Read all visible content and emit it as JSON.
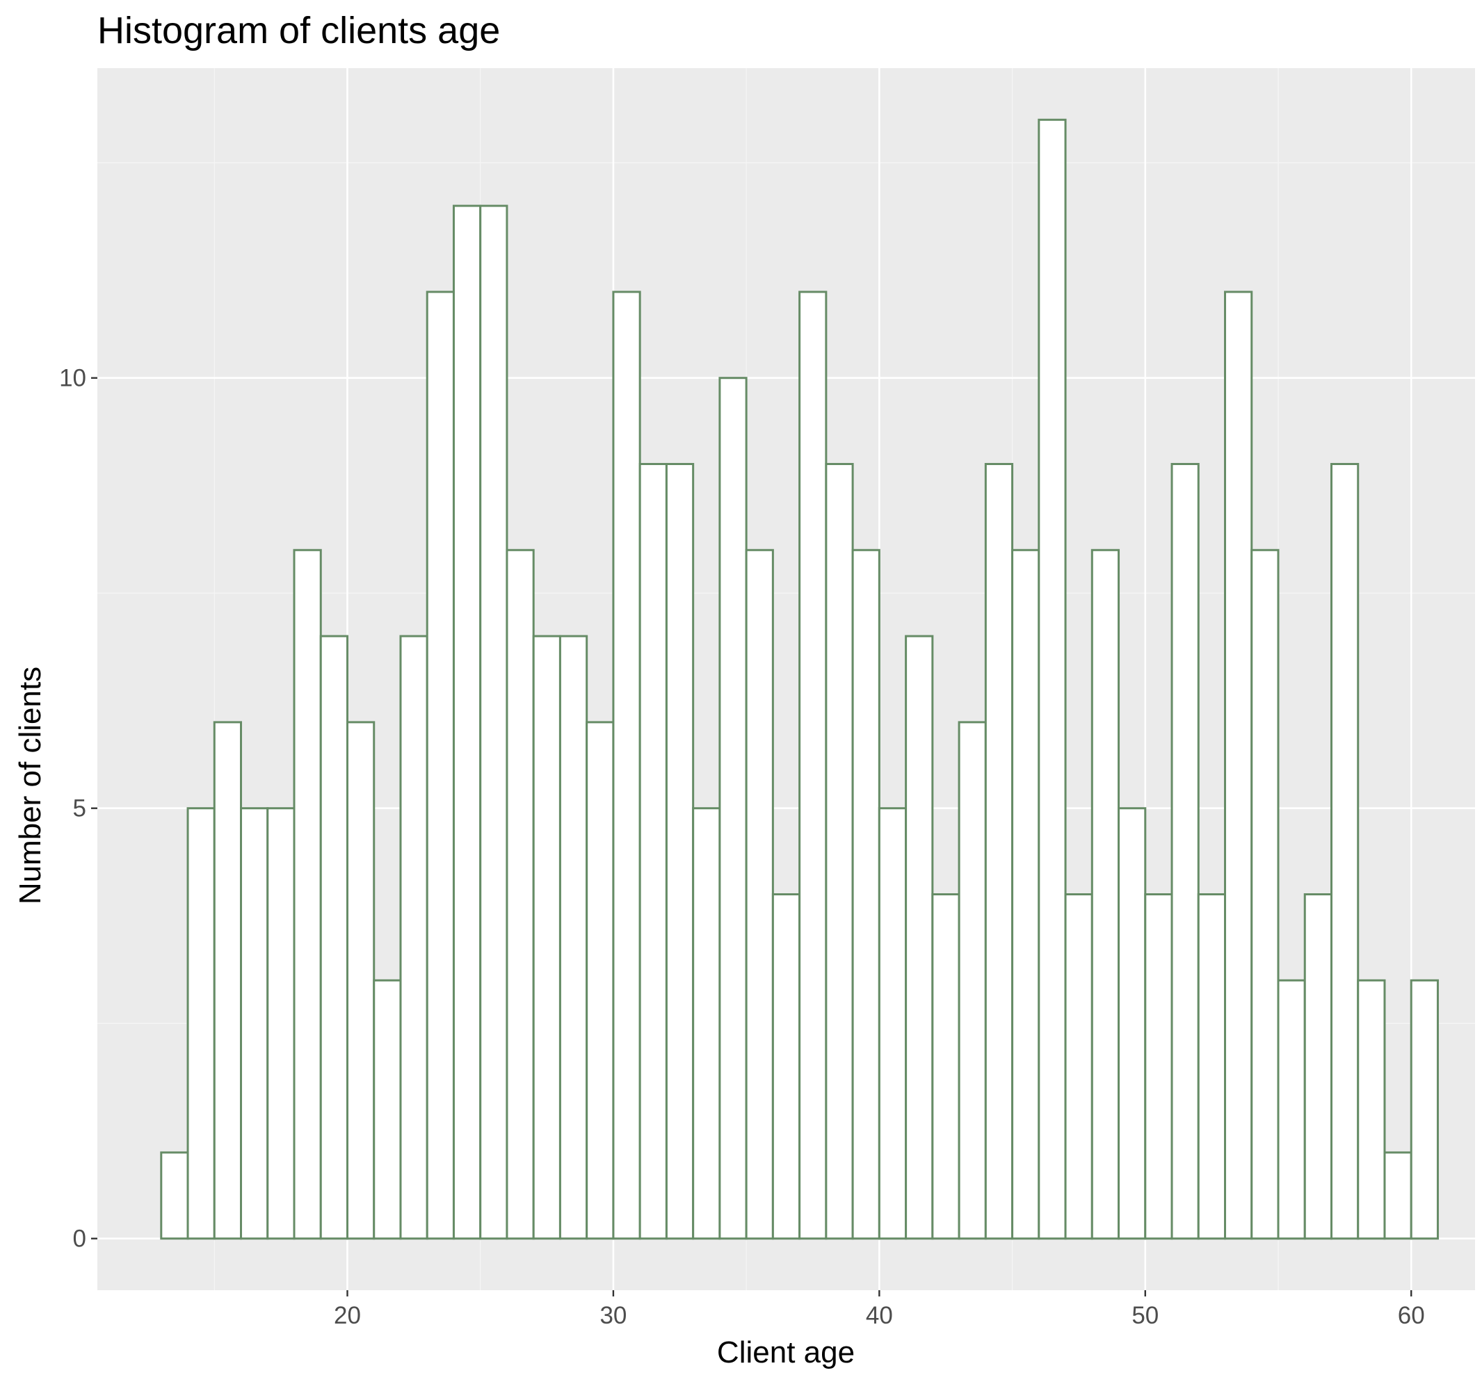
{
  "chart_data": {
    "type": "bar",
    "title": "Histogram of clients age",
    "xlabel": "Client age",
    "ylabel": "Number of clients",
    "xlim": [
      10.6,
      62.4
    ],
    "ylim": [
      -0.6,
      13.6
    ],
    "x_ticks": [
      20,
      30,
      40,
      50,
      60
    ],
    "y_ticks": [
      0,
      5,
      10
    ],
    "x_minor_ticks": [
      15,
      25,
      35,
      45,
      55
    ],
    "y_minor_ticks": [
      2.5,
      7.5,
      12.5
    ],
    "bin_start": 13.0,
    "bin_width": 1.0,
    "values": [
      1,
      5,
      6,
      5,
      5,
      8,
      7,
      6,
      3,
      7,
      11,
      12,
      12,
      8,
      7,
      7,
      6,
      11,
      9,
      9,
      5,
      10,
      8,
      4,
      11,
      9,
      8,
      5,
      7,
      4,
      6,
      9,
      8,
      13,
      4,
      8,
      5,
      4,
      9,
      4,
      11,
      8,
      3,
      4,
      9,
      3,
      1,
      3
    ],
    "grid": true,
    "legend": "none"
  },
  "colors": {
    "panel_background": "#ebebeb",
    "grid_major": "#ffffff",
    "grid_minor": "#f5f5f5",
    "bar_fill": "#ffffff",
    "bar_outline": "#668c66",
    "tick_label": "#4d4d4d",
    "tick_mark": "#333333",
    "text": "#000000"
  }
}
